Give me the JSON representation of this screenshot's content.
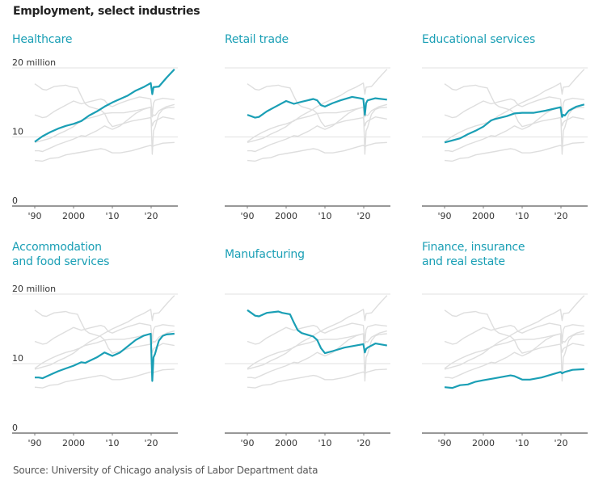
{
  "title": "Employment, select industries",
  "source": "Source: University of Chicago analysis of Labor Department data",
  "colors": {
    "highlight": "#1a9fb5",
    "context": "#dedede",
    "grid": "#e2e2e2",
    "axis": "#777777",
    "text": "#333333"
  },
  "chart_data": {
    "type": "line",
    "layout": "small-multiples-2x3",
    "ylabel": "million",
    "ylim": [
      0,
      20
    ],
    "xlim": [
      1988,
      2027
    ],
    "yticks": [
      0,
      10,
      20
    ],
    "ytick_labels": [
      "0",
      "10",
      "20 million"
    ],
    "xticks": [
      1990,
      2000,
      2010,
      2020
    ],
    "xtick_labels": [
      "'90",
      "2000",
      "'10",
      "'20"
    ],
    "grid": true,
    "panels": [
      {
        "title": "Healthcare",
        "highlight": "Healthcare",
        "show_y_labels": true
      },
      {
        "title": "Retail trade",
        "highlight": "Retail trade",
        "show_y_labels": false
      },
      {
        "title": "Educational services",
        "highlight": "Educational services",
        "show_y_labels": false
      },
      {
        "title": "Accommodation and food services",
        "title_lines": [
          "Accommodation",
          "and food services"
        ],
        "highlight": "Accommodation and food services",
        "show_y_labels": true
      },
      {
        "title": "Manufacturing",
        "highlight": "Manufacturing",
        "show_y_labels": false
      },
      {
        "title": "Finance, insurance and real estate",
        "title_lines": [
          "Finance, insurance",
          "and real estate"
        ],
        "highlight": "Finance, insurance and real estate",
        "show_y_labels": false
      }
    ],
    "series": [
      {
        "name": "Healthcare",
        "x": [
          1990,
          1992,
          1994,
          1996,
          1998,
          2000,
          2002,
          2004,
          2006,
          2008,
          2010,
          2012,
          2014,
          2016,
          2018,
          2019.9,
          2020.3,
          2020.6,
          2022,
          2024,
          2026
        ],
        "values": [
          9.3,
          10.1,
          10.7,
          11.2,
          11.6,
          11.9,
          12.3,
          13.1,
          13.7,
          14.4,
          15.0,
          15.5,
          16.0,
          16.7,
          17.2,
          17.8,
          16.2,
          17.2,
          17.3,
          18.6,
          19.8
        ]
      },
      {
        "name": "Retail trade",
        "x": [
          1990,
          1991,
          1992,
          1993,
          1995,
          1997,
          2000,
          2002,
          2004,
          2007,
          2008,
          2009,
          2010,
          2012,
          2014,
          2017,
          2019,
          2019.9,
          2020.3,
          2020.6,
          2021,
          2023,
          2026
        ],
        "values": [
          13.2,
          13.0,
          12.8,
          12.9,
          13.7,
          14.3,
          15.2,
          14.8,
          15.1,
          15.5,
          15.3,
          14.6,
          14.4,
          14.9,
          15.3,
          15.8,
          15.6,
          15.5,
          13.2,
          14.9,
          15.3,
          15.6,
          15.4
        ]
      },
      {
        "name": "Educational services",
        "x": [
          1990,
          1992,
          1994,
          1996,
          1998,
          2000,
          2002,
          2003,
          2006,
          2008,
          2010,
          2013,
          2016,
          2019.9,
          2020.3,
          2020.6,
          2021,
          2022,
          2024,
          2026
        ],
        "values": [
          9.2,
          9.5,
          9.8,
          10.4,
          10.9,
          11.5,
          12.4,
          12.6,
          13.0,
          13.4,
          13.5,
          13.5,
          13.8,
          14.3,
          12.9,
          13.2,
          13.1,
          13.8,
          14.4,
          14.7
        ]
      },
      {
        "name": "Accommodation and food services",
        "x": [
          1990,
          1991,
          1992,
          1994,
          1996,
          1998,
          2000,
          2002,
          2003,
          2006,
          2008,
          2010,
          2012,
          2014,
          2016,
          2018,
          2019.9,
          2020.3,
          2020.6,
          2021,
          2021.5,
          2022,
          2023,
          2024,
          2026
        ],
        "values": [
          8.0,
          8.0,
          7.9,
          8.4,
          8.9,
          9.3,
          9.7,
          10.2,
          10.1,
          10.9,
          11.6,
          11.1,
          11.6,
          12.5,
          13.4,
          14.0,
          14.3,
          7.5,
          10.9,
          11.4,
          12.4,
          13.3,
          14.0,
          14.2,
          14.3
        ]
      },
      {
        "name": "Manufacturing",
        "x": [
          1990,
          1991,
          1992,
          1993,
          1995,
          1998,
          1999,
          2001,
          2002,
          2003,
          2004,
          2007,
          2008,
          2009,
          2010,
          2012,
          2015,
          2019.9,
          2020.3,
          2020.6,
          2021,
          2023,
          2026
        ],
        "values": [
          17.7,
          17.3,
          16.9,
          16.8,
          17.3,
          17.5,
          17.3,
          17.1,
          15.9,
          14.8,
          14.4,
          13.9,
          13.4,
          12.2,
          11.5,
          11.8,
          12.3,
          12.8,
          11.6,
          12.1,
          12.3,
          12.9,
          12.6
        ]
      },
      {
        "name": "Finance, insurance and real estate",
        "x": [
          1990,
          1992,
          1994,
          1996,
          1998,
          2000,
          2003,
          2005,
          2007,
          2008,
          2010,
          2012,
          2015,
          2018,
          2019.9,
          2020.3,
          2021,
          2023,
          2026
        ],
        "values": [
          6.6,
          6.5,
          6.9,
          7.0,
          7.4,
          7.6,
          7.9,
          8.1,
          8.3,
          8.2,
          7.7,
          7.7,
          8.0,
          8.5,
          8.8,
          8.6,
          8.8,
          9.1,
          9.2
        ]
      }
    ]
  }
}
